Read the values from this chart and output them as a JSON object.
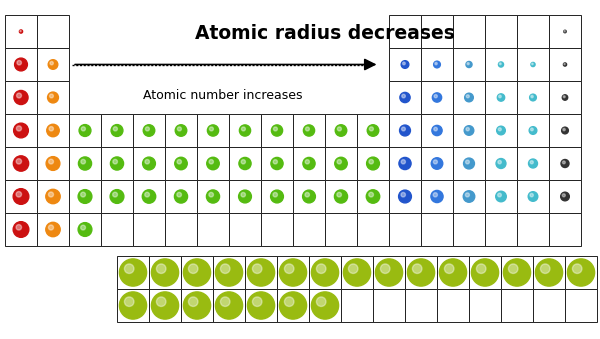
{
  "title": "Atomic radius decreases",
  "subtitle": "Atomic number increases",
  "bg_color": "#ffffff",
  "grid_color": "#222222",
  "colors": {
    "red": "#cc1111",
    "orange": "#ee8811",
    "green": "#55bb11",
    "dark_blue": "#2255cc",
    "medium_blue": "#3377dd",
    "light_blue": "#4499cc",
    "cyan": "#44bbcc",
    "black": "#333333",
    "yellow_green": "#99bb11",
    "tiny_red": "#cc1111",
    "tiny_black": "#444444"
  },
  "main_table": {
    "ncols": 18,
    "nrows": 7,
    "cells": [
      {
        "row": 0,
        "col": 0,
        "color": "tiny_red",
        "size": 0.1
      },
      {
        "row": 0,
        "col": 17,
        "color": "tiny_black",
        "size": 0.08
      },
      {
        "row": 1,
        "col": 0,
        "color": "red",
        "size": 0.4
      },
      {
        "row": 1,
        "col": 1,
        "color": "orange",
        "size": 0.3
      },
      {
        "row": 1,
        "col": 12,
        "color": "dark_blue",
        "size": 0.24
      },
      {
        "row": 1,
        "col": 13,
        "color": "medium_blue",
        "size": 0.21
      },
      {
        "row": 1,
        "col": 14,
        "color": "light_blue",
        "size": 0.19
      },
      {
        "row": 1,
        "col": 15,
        "color": "cyan",
        "size": 0.16
      },
      {
        "row": 1,
        "col": 16,
        "color": "cyan",
        "size": 0.13
      },
      {
        "row": 1,
        "col": 17,
        "color": "black",
        "size": 0.1
      },
      {
        "row": 2,
        "col": 0,
        "color": "red",
        "size": 0.44
      },
      {
        "row": 2,
        "col": 1,
        "color": "orange",
        "size": 0.34
      },
      {
        "row": 2,
        "col": 12,
        "color": "dark_blue",
        "size": 0.32
      },
      {
        "row": 2,
        "col": 13,
        "color": "medium_blue",
        "size": 0.29
      },
      {
        "row": 2,
        "col": 14,
        "color": "light_blue",
        "size": 0.27
      },
      {
        "row": 2,
        "col": 15,
        "color": "cyan",
        "size": 0.23
      },
      {
        "row": 2,
        "col": 16,
        "color": "cyan",
        "size": 0.21
      },
      {
        "row": 2,
        "col": 17,
        "color": "black",
        "size": 0.17
      },
      {
        "row": 3,
        "col": 0,
        "color": "red",
        "size": 0.46
      },
      {
        "row": 3,
        "col": 1,
        "color": "orange",
        "size": 0.39
      },
      {
        "row": 3,
        "col": 2,
        "color": "green",
        "size": 0.37
      },
      {
        "row": 3,
        "col": 3,
        "color": "green",
        "size": 0.37
      },
      {
        "row": 3,
        "col": 4,
        "color": "green",
        "size": 0.36
      },
      {
        "row": 3,
        "col": 5,
        "color": "green",
        "size": 0.36
      },
      {
        "row": 3,
        "col": 6,
        "color": "green",
        "size": 0.35
      },
      {
        "row": 3,
        "col": 7,
        "color": "green",
        "size": 0.35
      },
      {
        "row": 3,
        "col": 8,
        "color": "green",
        "size": 0.35
      },
      {
        "row": 3,
        "col": 9,
        "color": "green",
        "size": 0.35
      },
      {
        "row": 3,
        "col": 10,
        "color": "green",
        "size": 0.36
      },
      {
        "row": 3,
        "col": 11,
        "color": "green",
        "size": 0.36
      },
      {
        "row": 3,
        "col": 12,
        "color": "dark_blue",
        "size": 0.34
      },
      {
        "row": 3,
        "col": 13,
        "color": "medium_blue",
        "size": 0.32
      },
      {
        "row": 3,
        "col": 14,
        "color": "light_blue",
        "size": 0.3
      },
      {
        "row": 3,
        "col": 15,
        "color": "cyan",
        "size": 0.27
      },
      {
        "row": 3,
        "col": 16,
        "color": "cyan",
        "size": 0.24
      },
      {
        "row": 3,
        "col": 17,
        "color": "black",
        "size": 0.21
      },
      {
        "row": 4,
        "col": 0,
        "color": "red",
        "size": 0.48
      },
      {
        "row": 4,
        "col": 1,
        "color": "orange",
        "size": 0.43
      },
      {
        "row": 4,
        "col": 2,
        "color": "green",
        "size": 0.41
      },
      {
        "row": 4,
        "col": 3,
        "color": "green",
        "size": 0.41
      },
      {
        "row": 4,
        "col": 4,
        "color": "green",
        "size": 0.4
      },
      {
        "row": 4,
        "col": 5,
        "color": "green",
        "size": 0.39
      },
      {
        "row": 4,
        "col": 6,
        "color": "green",
        "size": 0.39
      },
      {
        "row": 4,
        "col": 7,
        "color": "green",
        "size": 0.38
      },
      {
        "row": 4,
        "col": 8,
        "color": "green",
        "size": 0.38
      },
      {
        "row": 4,
        "col": 9,
        "color": "green",
        "size": 0.38
      },
      {
        "row": 4,
        "col": 10,
        "color": "green",
        "size": 0.39
      },
      {
        "row": 4,
        "col": 11,
        "color": "green",
        "size": 0.4
      },
      {
        "row": 4,
        "col": 12,
        "color": "dark_blue",
        "size": 0.38
      },
      {
        "row": 4,
        "col": 13,
        "color": "medium_blue",
        "size": 0.36
      },
      {
        "row": 4,
        "col": 14,
        "color": "light_blue",
        "size": 0.34
      },
      {
        "row": 4,
        "col": 15,
        "color": "cyan",
        "size": 0.31
      },
      {
        "row": 4,
        "col": 16,
        "color": "cyan",
        "size": 0.28
      },
      {
        "row": 4,
        "col": 17,
        "color": "black",
        "size": 0.25
      },
      {
        "row": 5,
        "col": 0,
        "color": "red",
        "size": 0.49
      },
      {
        "row": 5,
        "col": 1,
        "color": "orange",
        "size": 0.45
      },
      {
        "row": 5,
        "col": 2,
        "color": "green",
        "size": 0.43
      },
      {
        "row": 5,
        "col": 3,
        "color": "green",
        "size": 0.43
      },
      {
        "row": 5,
        "col": 4,
        "color": "green",
        "size": 0.42
      },
      {
        "row": 5,
        "col": 5,
        "color": "green",
        "size": 0.41
      },
      {
        "row": 5,
        "col": 6,
        "color": "green",
        "size": 0.41
      },
      {
        "row": 5,
        "col": 7,
        "color": "green",
        "size": 0.4
      },
      {
        "row": 5,
        "col": 8,
        "color": "green",
        "size": 0.4
      },
      {
        "row": 5,
        "col": 9,
        "color": "green",
        "size": 0.4
      },
      {
        "row": 5,
        "col": 10,
        "color": "green",
        "size": 0.41
      },
      {
        "row": 5,
        "col": 11,
        "color": "green",
        "size": 0.42
      },
      {
        "row": 5,
        "col": 12,
        "color": "dark_blue",
        "size": 0.4
      },
      {
        "row": 5,
        "col": 13,
        "color": "medium_blue",
        "size": 0.38
      },
      {
        "row": 5,
        "col": 14,
        "color": "light_blue",
        "size": 0.36
      },
      {
        "row": 5,
        "col": 15,
        "color": "cyan",
        "size": 0.33
      },
      {
        "row": 5,
        "col": 16,
        "color": "cyan",
        "size": 0.3
      },
      {
        "row": 5,
        "col": 17,
        "color": "black",
        "size": 0.27
      },
      {
        "row": 6,
        "col": 0,
        "color": "red",
        "size": 0.49
      },
      {
        "row": 6,
        "col": 1,
        "color": "orange",
        "size": 0.45
      },
      {
        "row": 6,
        "col": 2,
        "color": "green",
        "size": 0.43
      }
    ]
  },
  "lanthanide_table": {
    "ncols": 15,
    "nrows": 2,
    "color": "yellow_green",
    "sizes": [
      [
        0.85,
        0.85,
        0.85,
        0.85,
        0.85,
        0.85,
        0.85,
        0.85,
        0.85,
        0.85,
        0.85,
        0.85,
        0.85,
        0.85,
        0.85
      ],
      [
        0.85,
        0.85,
        0.85,
        0.85,
        0.85,
        0.85,
        0.85,
        0.0,
        0.0,
        0.0,
        0.0,
        0.0,
        0.0,
        0.0,
        0.0
      ]
    ]
  }
}
